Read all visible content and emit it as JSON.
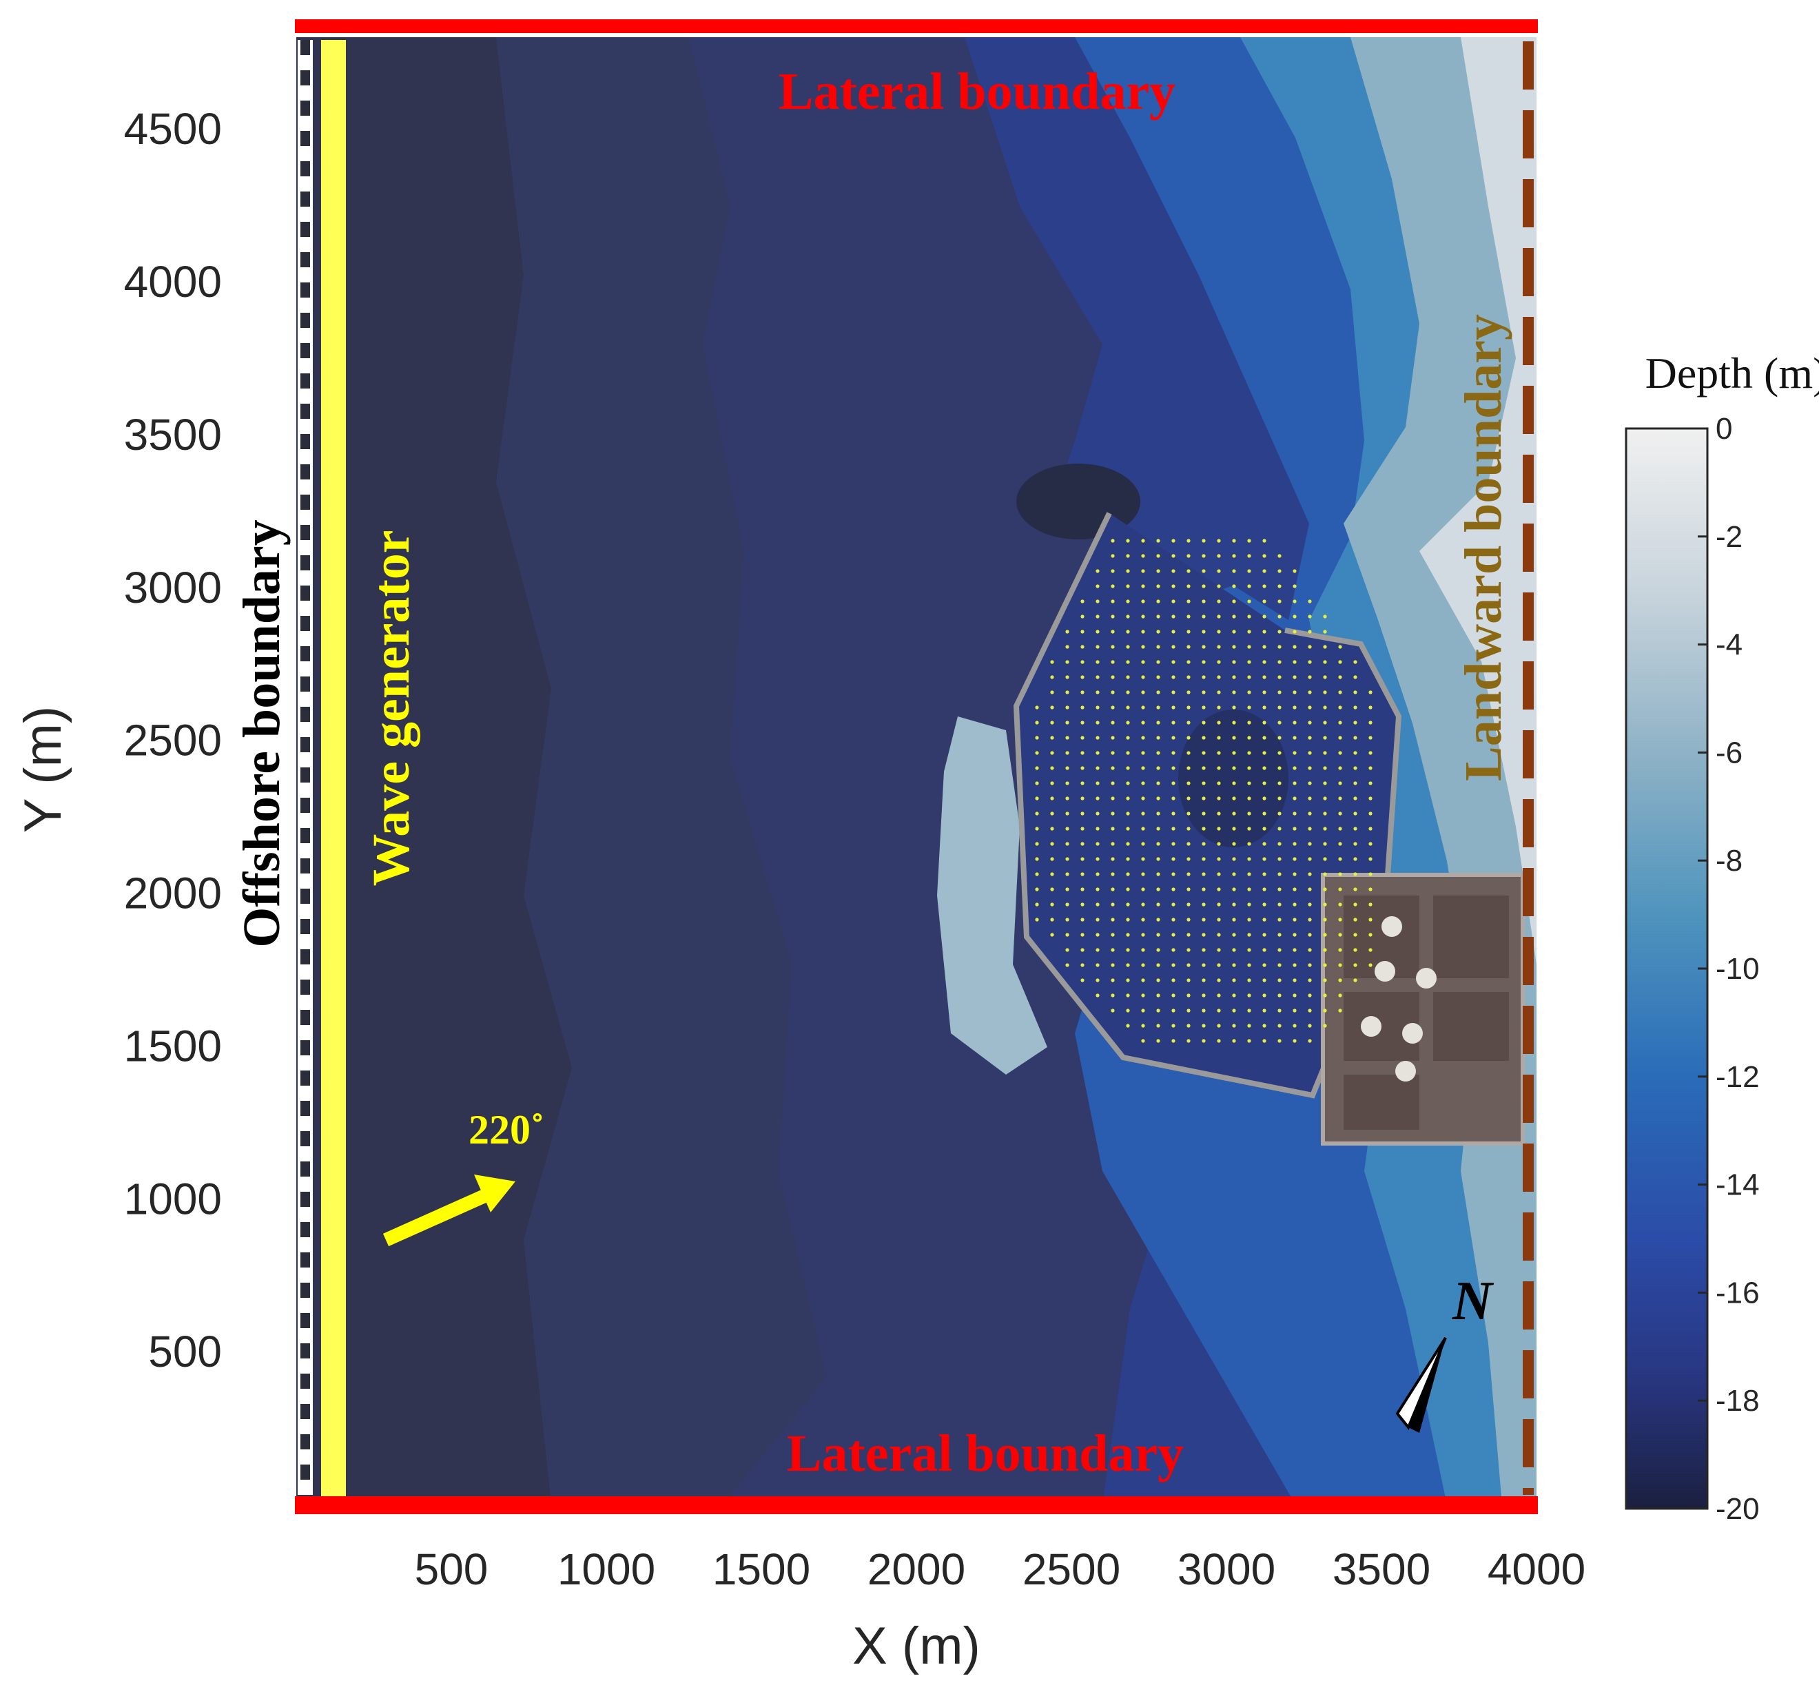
{
  "chart_data": {
    "type": "heatmap",
    "title": "",
    "xlabel": "X (m)",
    "ylabel": "Y (m)",
    "xlim": [
      0,
      4000
    ],
    "ylim": [
      0,
      4800
    ],
    "x_ticks": [
      500,
      1000,
      1500,
      2000,
      2500,
      3000,
      3500,
      4000
    ],
    "y_ticks": [
      500,
      1000,
      1500,
      2000,
      2500,
      3000,
      3500,
      4000,
      4500
    ],
    "colorbar": {
      "title": "Depth (m)",
      "range": [
        -20,
        0
      ],
      "ticks": [
        0,
        -2,
        -4,
        -6,
        -8,
        -10,
        -12,
        -14,
        -16,
        -18,
        -20
      ],
      "color_low": "#1b2040",
      "color_mid": "#2a6cb8",
      "color_high": "#f0f0f0"
    },
    "annotations": {
      "lateral_top": "Lateral boundary",
      "lateral_bottom": "Lateral boundary",
      "offshore": "Offshore boundary",
      "wave_generator": "Wave generator",
      "landward": "Landward boundary",
      "wave_direction": "220˚",
      "north_label": "N"
    },
    "colors": {
      "lateral_boundary": "#ff0000",
      "wave_generator": "#ffff55",
      "landward_boundary": "#8b3a10",
      "deep_water": "#303450"
    },
    "grid": false,
    "legend": "none"
  }
}
